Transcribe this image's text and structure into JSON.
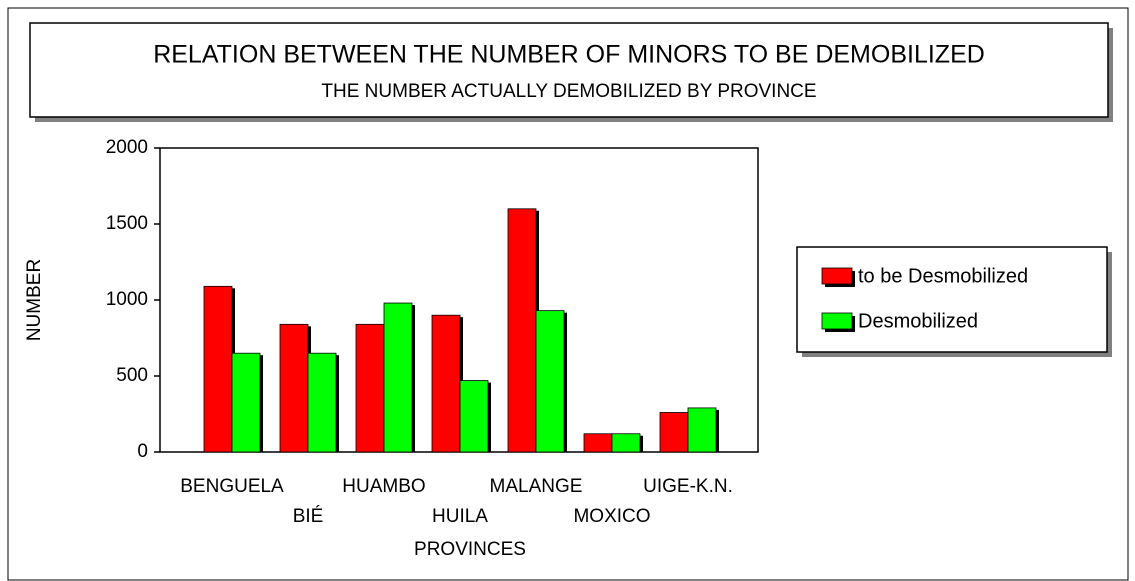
{
  "chart_data": {
    "type": "bar",
    "title": "RELATION BETWEEN THE NUMBER OF MINORS TO BE DEMOBILIZED",
    "subtitle": "THE NUMBER ACTUALLY DEMOBILIZED BY PROVINCE",
    "x_label": "PROVINCES",
    "y_label": "NUMBER",
    "categories": [
      "BENGUELA",
      "BIÉ",
      "HUAMBO",
      "HUILA",
      "MALANGE",
      "MOXICO",
      "UIGE-K.N."
    ],
    "series": [
      {
        "name": "to be Desmobilized",
        "color": "#ff0000",
        "values": [
          1090,
          840,
          840,
          900,
          1600,
          120,
          260
        ]
      },
      {
        "name": "Desmobilized",
        "color": "#00ff00",
        "values": [
          650,
          650,
          980,
          470,
          930,
          120,
          290
        ]
      }
    ],
    "ylim": [
      0,
      2000
    ],
    "yticks": [
      0,
      500,
      1000,
      1500,
      2000
    ],
    "legend": "right"
  }
}
